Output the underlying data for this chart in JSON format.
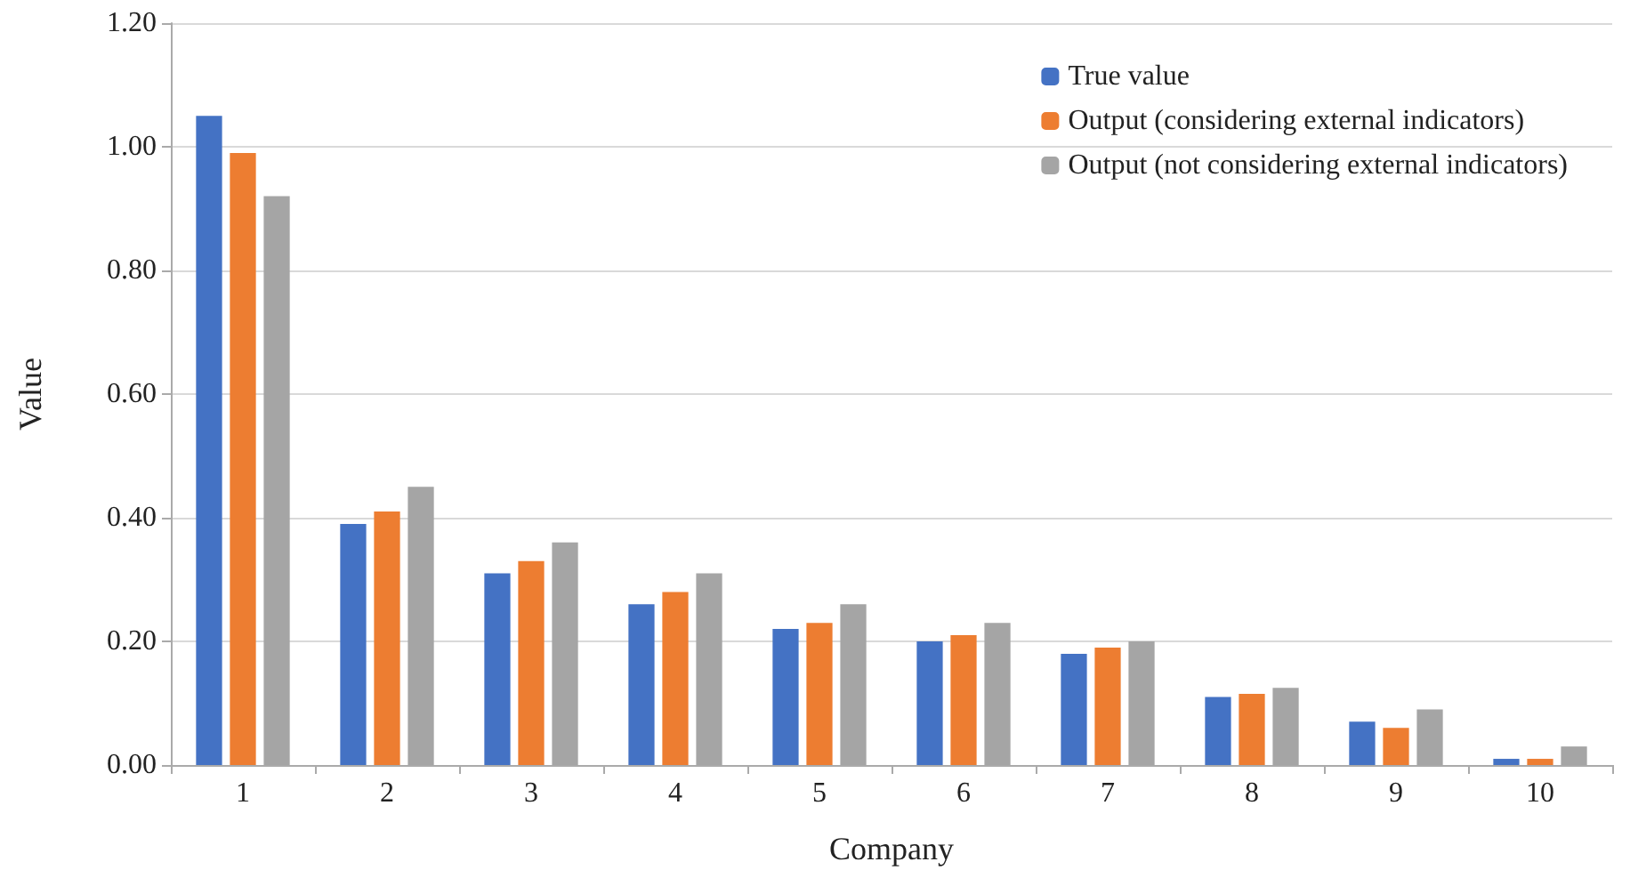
{
  "chart_data": {
    "type": "bar",
    "xlabel": "Company",
    "ylabel": "Value",
    "categories": [
      "1",
      "2",
      "3",
      "4",
      "5",
      "6",
      "7",
      "8",
      "9",
      "10"
    ],
    "series": [
      {
        "name": "True value",
        "color": "#4472c4",
        "values": [
          1.05,
          0.39,
          0.31,
          0.26,
          0.22,
          0.2,
          0.18,
          0.11,
          0.07,
          0.01
        ]
      },
      {
        "name": "Output (considering external indicators)",
        "color": "#ed7d31",
        "values": [
          0.99,
          0.41,
          0.33,
          0.28,
          0.23,
          0.21,
          0.19,
          0.115,
          0.06,
          0.01
        ]
      },
      {
        "name": "Output (not considering external indicators)",
        "color": "#a5a5a5",
        "values": [
          0.92,
          0.45,
          0.36,
          0.31,
          0.26,
          0.23,
          0.2,
          0.125,
          0.09,
          0.03
        ]
      }
    ],
    "ylim": [
      0,
      1.2
    ],
    "yticks": [
      {
        "value": 0,
        "label": "0.00"
      },
      {
        "value": 0.2,
        "label": "0.20"
      },
      {
        "value": 0.4,
        "label": "0.40"
      },
      {
        "value": 0.6,
        "label": "0.60"
      },
      {
        "value": 0.8,
        "label": "0.80"
      },
      {
        "value": 1,
        "label": "1.00"
      },
      {
        "value": 1.2,
        "label": "1.20"
      }
    ],
    "grid": "y",
    "legend": "top right"
  }
}
